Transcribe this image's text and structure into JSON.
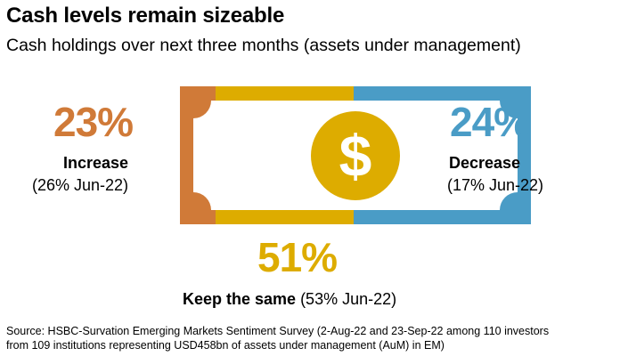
{
  "title": "Cash levels remain sizeable",
  "subtitle": "Cash holdings over next three months (assets under management)",
  "colors": {
    "increase": "#d07a38",
    "same": "#ddac00",
    "decrease": "#4a9cc6",
    "coin": "#ddac00",
    "dollar": "#ffffff"
  },
  "icons": {
    "banknote": "banknote-icon",
    "dollar": "dollar-sign-icon"
  },
  "chart_data": {
    "type": "table",
    "unit": "%",
    "categories": [
      "Increase",
      "Decrease",
      "Keep the same"
    ],
    "values": [
      23,
      24,
      51
    ],
    "comparison": [
      26,
      17,
      53
    ],
    "comparison_period": "Jun-22"
  },
  "display": {
    "increase_pct": "23%",
    "increase_label": "Increase",
    "increase_prev": "(26% Jun-22)",
    "decrease_pct": "24%",
    "decrease_label": "Decrease",
    "decrease_prev": "(17% Jun-22)",
    "same_pct": "51%",
    "same_label": "Keep the same",
    "same_prev": " (53% Jun-22)",
    "dollar_glyph": "$"
  },
  "source_line1": "Source: HSBC-Survation Emerging Markets Sentiment Survey (2-Aug-22 and 23-Sep-22 among 110 investors",
  "source_line2": "from 109 institutions representing USD458bn of assets under management (AuM) in EM)"
}
